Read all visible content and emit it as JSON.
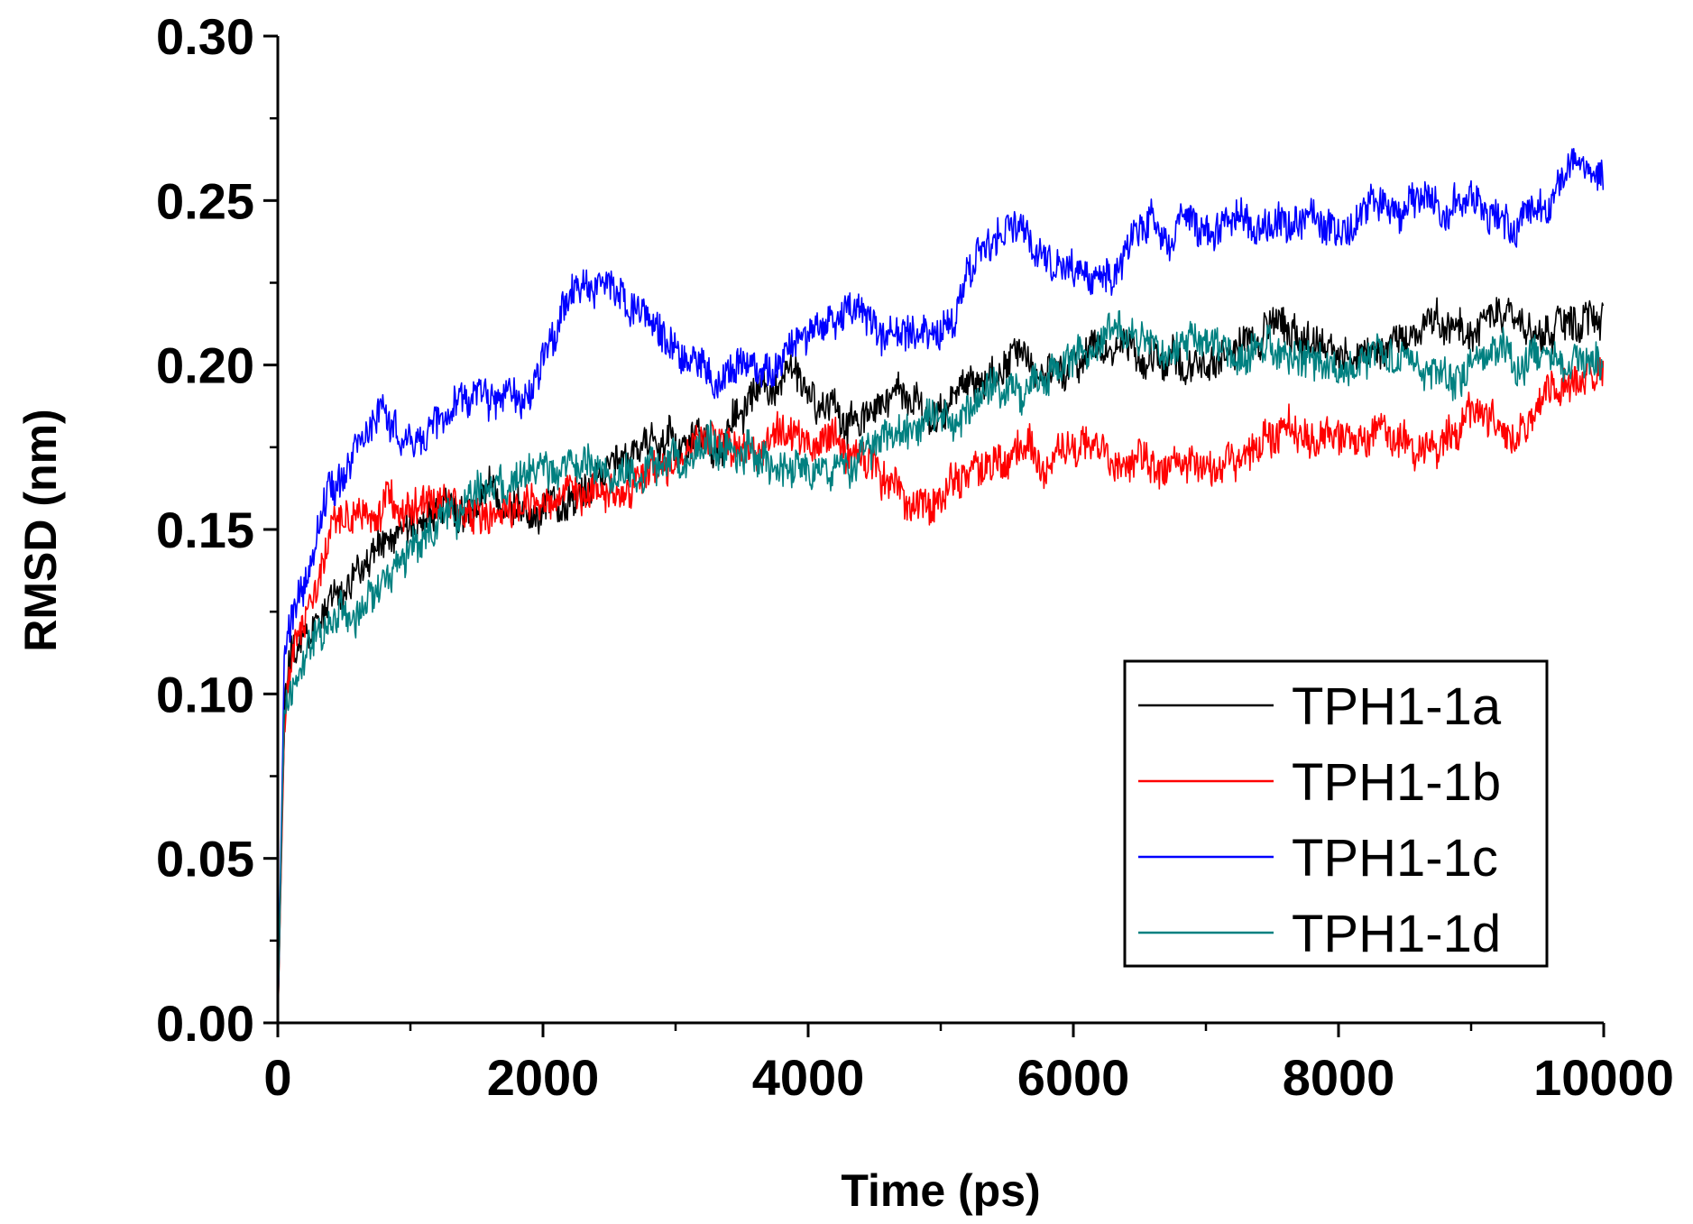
{
  "chart_data": {
    "type": "line",
    "title": "",
    "xlabel": "Time (ps)",
    "ylabel": "RMSD (nm)",
    "xlim": [
      0,
      10000
    ],
    "ylim": [
      0,
      0.3
    ],
    "x_ticks": [
      0,
      2000,
      4000,
      6000,
      8000,
      10000
    ],
    "x_tick_labels": [
      "0",
      "2000",
      "4000",
      "6000",
      "8000",
      "10000"
    ],
    "x_minor_ticks": [
      1000,
      3000,
      5000,
      7000,
      9000
    ],
    "y_ticks": [
      0,
      0.05,
      0.1,
      0.15,
      0.2,
      0.25,
      0.3
    ],
    "y_tick_labels": [
      "0.00",
      "0.05",
      "0.10",
      "0.15",
      "0.20",
      "0.25",
      "0.30"
    ],
    "y_minor_ticks": [
      0.025,
      0.075,
      0.125,
      0.175,
      0.225,
      0.275
    ],
    "grid": false,
    "legend_position": "lower-right",
    "series": [
      {
        "name": "TPH1-1a",
        "color": "#000000",
        "x": [
          0,
          50,
          100,
          200,
          300,
          400,
          500,
          600,
          800,
          1000,
          1200,
          1500,
          1800,
          2000,
          2300,
          2600,
          3000,
          3300,
          3600,
          4000,
          4300,
          4600,
          5000,
          5300,
          5600,
          6000,
          6300,
          6600,
          7000,
          7300,
          7600,
          8000,
          8300,
          8600,
          9000,
          9300,
          9600,
          10000
        ],
        "values": [
          0.0,
          0.095,
          0.11,
          0.115,
          0.12,
          0.13,
          0.13,
          0.14,
          0.145,
          0.15,
          0.155,
          0.158,
          0.16,
          0.16,
          0.165,
          0.17,
          0.175,
          0.18,
          0.19,
          0.19,
          0.185,
          0.19,
          0.185,
          0.195,
          0.2,
          0.2,
          0.205,
          0.2,
          0.2,
          0.205,
          0.21,
          0.205,
          0.205,
          0.21,
          0.21,
          0.215,
          0.21,
          0.215
        ]
      },
      {
        "name": "TPH1-1b",
        "color": "#ff0000",
        "x": [
          0,
          50,
          100,
          200,
          300,
          400,
          500,
          600,
          800,
          1000,
          1200,
          1500,
          1800,
          2000,
          2300,
          2600,
          3000,
          3300,
          3600,
          4000,
          4300,
          4600,
          5000,
          5300,
          5600,
          6000,
          6300,
          6600,
          7000,
          7300,
          7600,
          8000,
          8300,
          8600,
          9000,
          9300,
          9600,
          10000
        ],
        "values": [
          0.0,
          0.09,
          0.105,
          0.12,
          0.13,
          0.145,
          0.15,
          0.155,
          0.155,
          0.155,
          0.158,
          0.155,
          0.155,
          0.16,
          0.16,
          0.165,
          0.17,
          0.18,
          0.175,
          0.18,
          0.175,
          0.165,
          0.16,
          0.165,
          0.17,
          0.175,
          0.17,
          0.17,
          0.175,
          0.175,
          0.18,
          0.18,
          0.18,
          0.175,
          0.185,
          0.18,
          0.19,
          0.2
        ]
      },
      {
        "name": "TPH1-1c",
        "color": "#0000ff",
        "x": [
          0,
          50,
          100,
          200,
          300,
          400,
          500,
          600,
          800,
          1000,
          1200,
          1500,
          1800,
          2000,
          2300,
          2600,
          3000,
          3300,
          3600,
          4000,
          4300,
          4600,
          5000,
          5300,
          5600,
          6000,
          6300,
          6600,
          7000,
          7300,
          7600,
          8000,
          8300,
          8600,
          9000,
          9300,
          9600,
          10000
        ],
        "values": [
          0.0,
          0.11,
          0.12,
          0.13,
          0.15,
          0.165,
          0.17,
          0.18,
          0.185,
          0.175,
          0.185,
          0.19,
          0.19,
          0.2,
          0.22,
          0.22,
          0.205,
          0.195,
          0.195,
          0.21,
          0.215,
          0.205,
          0.21,
          0.235,
          0.24,
          0.225,
          0.225,
          0.245,
          0.24,
          0.245,
          0.245,
          0.24,
          0.245,
          0.245,
          0.25,
          0.245,
          0.255,
          0.26
        ]
      },
      {
        "name": "TPH1-1d",
        "color": "#008080",
        "x": [
          0,
          50,
          100,
          200,
          300,
          400,
          500,
          600,
          800,
          1000,
          1200,
          1500,
          1800,
          2000,
          2300,
          2600,
          3000,
          3300,
          3600,
          4000,
          4300,
          4600,
          5000,
          5300,
          5600,
          6000,
          6300,
          6600,
          7000,
          7300,
          7600,
          8000,
          8300,
          8600,
          9000,
          9300,
          9600,
          10000
        ],
        "values": [
          0.0,
          0.1,
          0.105,
          0.11,
          0.115,
          0.12,
          0.125,
          0.125,
          0.13,
          0.14,
          0.15,
          0.16,
          0.165,
          0.165,
          0.17,
          0.17,
          0.17,
          0.175,
          0.17,
          0.165,
          0.17,
          0.18,
          0.185,
          0.19,
          0.195,
          0.2,
          0.205,
          0.205,
          0.205,
          0.205,
          0.205,
          0.2,
          0.205,
          0.2,
          0.2,
          0.205,
          0.2,
          0.2
        ]
      }
    ]
  }
}
